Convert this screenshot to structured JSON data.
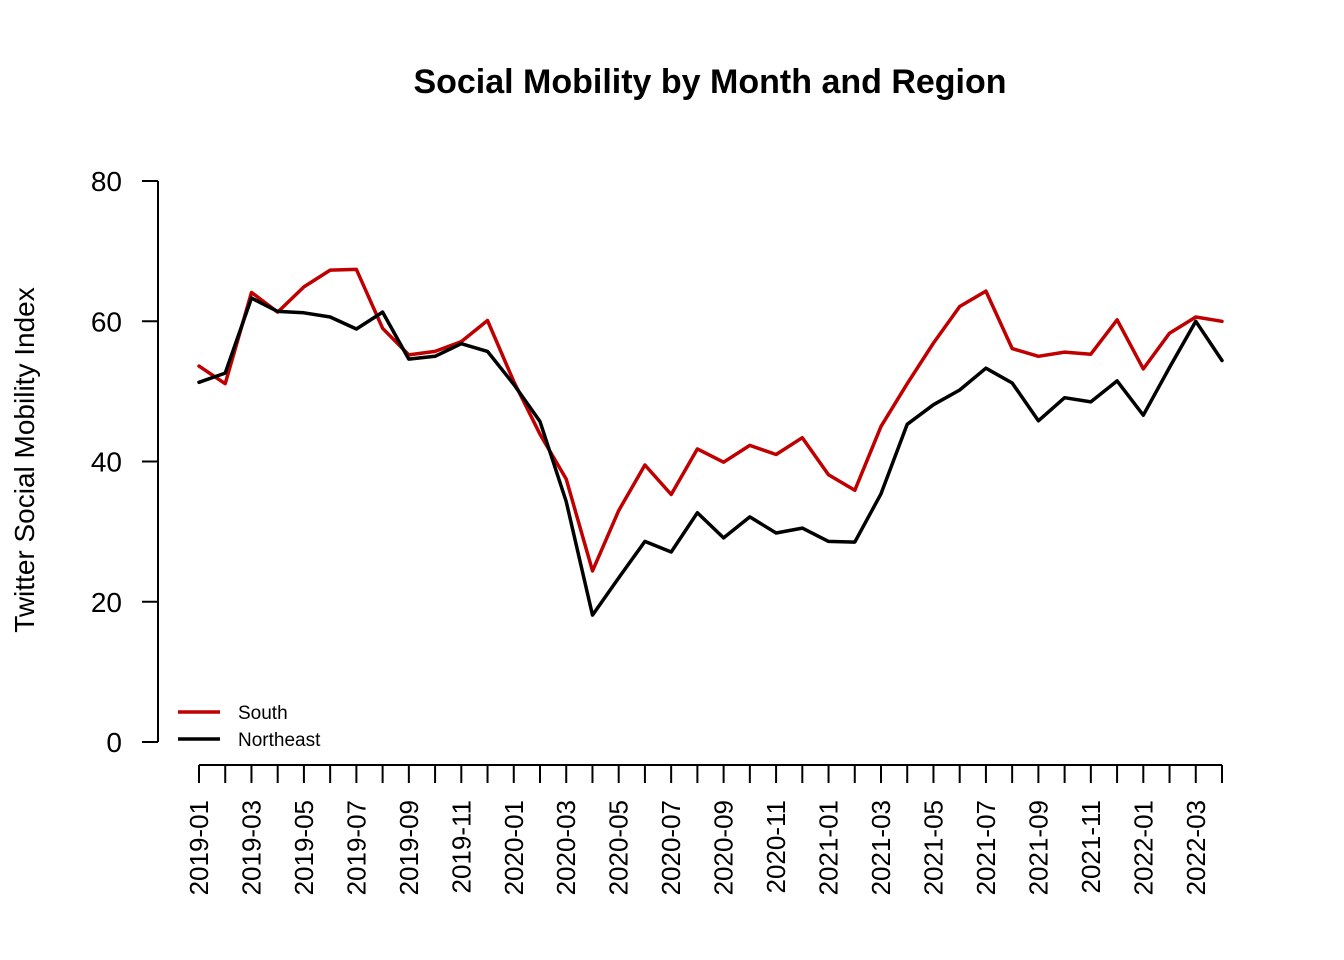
{
  "chart_data": {
    "type": "line",
    "title": "Social Mobility by Month and Region",
    "ylabel": "Twitter Social Mobility Index",
    "xlabel": "",
    "ylim": [
      0,
      80
    ],
    "yticks": [
      0,
      20,
      40,
      60,
      80
    ],
    "grid": false,
    "legend_position": "bottom-left",
    "x": [
      "2019-01",
      "2019-02",
      "2019-03",
      "2019-04",
      "2019-05",
      "2019-06",
      "2019-07",
      "2019-08",
      "2019-09",
      "2019-10",
      "2019-11",
      "2019-12",
      "2020-01",
      "2020-02",
      "2020-03",
      "2020-04",
      "2020-05",
      "2020-06",
      "2020-07",
      "2020-08",
      "2020-09",
      "2020-10",
      "2020-11",
      "2020-12",
      "2021-01",
      "2021-02",
      "2021-03",
      "2021-04",
      "2021-05",
      "2021-06",
      "2021-07",
      "2021-08",
      "2021-09",
      "2021-10",
      "2021-11",
      "2021-12",
      "2022-01",
      "2022-02",
      "2022-03",
      "2022-04"
    ],
    "xtick_labels": [
      "2019-01",
      "2019-03",
      "2019-05",
      "2019-07",
      "2019-09",
      "2019-11",
      "2020-01",
      "2020-03",
      "2020-05",
      "2020-07",
      "2020-09",
      "2020-11",
      "2021-01",
      "2021-03",
      "2021-05",
      "2021-07",
      "2021-09",
      "2021-11",
      "2022-01",
      "2022-03"
    ],
    "series": [
      {
        "name": "South",
        "color": "#C00000",
        "values": [
          53.6,
          51.1,
          64.1,
          61.3,
          64.9,
          67.3,
          67.4,
          59.0,
          55.2,
          55.7,
          57.1,
          60.1,
          51.4,
          43.9,
          37.5,
          24.4,
          33.0,
          39.5,
          35.3,
          41.8,
          39.9,
          42.3,
          41.0,
          43.4,
          38.1,
          35.9,
          45.0,
          51.1,
          56.9,
          62.1,
          64.3,
          56.1,
          55.0,
          55.6,
          55.3,
          60.2,
          53.2,
          58.3,
          60.6,
          60.0
        ]
      },
      {
        "name": "Northeast",
        "color": "#000000",
        "values": [
          51.3,
          52.6,
          63.3,
          61.4,
          61.2,
          60.6,
          58.9,
          61.3,
          54.6,
          55.0,
          56.8,
          55.7,
          51.0,
          45.7,
          34.3,
          18.1,
          23.4,
          28.6,
          27.1,
          32.7,
          29.1,
          32.1,
          29.8,
          30.5,
          28.6,
          28.5,
          35.4,
          45.3,
          48.1,
          50.2,
          53.3,
          51.2,
          45.8,
          49.1,
          48.5,
          51.5,
          46.6,
          53.4,
          60.0,
          54.4
        ]
      }
    ]
  }
}
